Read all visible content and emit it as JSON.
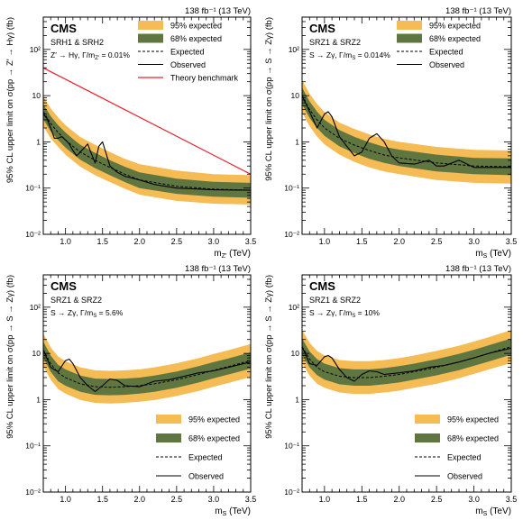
{
  "chart_data": [
    {
      "type": "line",
      "lumi_label": "138 fb⁻¹ (13 TeV)",
      "experiment": "CMS",
      "region": "SRH1 & SRH2",
      "process": "Z′ → Hγ, Γ/m",
      "process_sub": "Z′",
      "process_value": " = 0.01%",
      "xlabel": "m",
      "xlabel_sub": "Z′",
      "xlabel_unit": " (TeV)",
      "ylabel": "95% CL upper limit on σ(pp → Z′ → Hγ) (fb)",
      "xlim": [
        0.7,
        3.5
      ],
      "ylim": [
        0.01,
        500
      ],
      "yscale": "log",
      "xticks": [
        "1.0",
        "1.5",
        "2.0",
        "2.5",
        "3.0",
        "3.5"
      ],
      "yticks": [
        "10⁻²",
        "10⁻¹",
        "1",
        "10",
        "10²"
      ],
      "legend_position": "top-right",
      "legend": [
        "95% expected",
        "68% expected",
        "Expected",
        "Observed",
        "Theory benchmark"
      ],
      "x": [
        0.7,
        0.8,
        0.9,
        1.0,
        1.1,
        1.2,
        1.4,
        1.6,
        1.8,
        2.0,
        2.5,
        3.0,
        3.5
      ],
      "expected": [
        4.5,
        2.5,
        1.6,
        1.1,
        0.8,
        0.6,
        0.4,
        0.28,
        0.2,
        0.15,
        0.11,
        0.095,
        0.09
      ],
      "band68": [
        [
          3.1,
          6.5
        ],
        [
          1.7,
          3.6
        ],
        [
          1.1,
          2.3
        ],
        [
          0.75,
          1.6
        ],
        [
          0.55,
          1.15
        ],
        [
          0.41,
          0.86
        ],
        [
          0.27,
          0.58
        ],
        [
          0.19,
          0.4
        ],
        [
          0.135,
          0.29
        ],
        [
          0.1,
          0.22
        ],
        [
          0.075,
          0.16
        ],
        [
          0.065,
          0.137
        ],
        [
          0.062,
          0.13
        ]
      ],
      "band95": [
        [
          2.2,
          9.5
        ],
        [
          1.2,
          5.3
        ],
        [
          0.78,
          3.4
        ],
        [
          0.53,
          2.3
        ],
        [
          0.39,
          1.7
        ],
        [
          0.29,
          1.27
        ],
        [
          0.19,
          0.86
        ],
        [
          0.135,
          0.6
        ],
        [
          0.097,
          0.43
        ],
        [
          0.072,
          0.33
        ],
        [
          0.053,
          0.24
        ],
        [
          0.046,
          0.2
        ],
        [
          0.044,
          0.19
        ]
      ],
      "observed_x": [
        0.7,
        0.75,
        0.8,
        0.85,
        0.9,
        0.95,
        1.0,
        1.05,
        1.1,
        1.15,
        1.2,
        1.3,
        1.35,
        1.4,
        1.45,
        1.5,
        1.55,
        1.6,
        1.7,
        1.8,
        2.0,
        2.2,
        2.5,
        3.0,
        3.5
      ],
      "observed": [
        4.0,
        3.2,
        2.0,
        1.2,
        1.2,
        1.3,
        1.1,
        0.9,
        0.65,
        0.5,
        0.6,
        0.9,
        0.55,
        0.35,
        0.8,
        1.0,
        0.55,
        0.3,
        0.22,
        0.18,
        0.15,
        0.12,
        0.1,
        0.092,
        0.09
      ],
      "theory_x": [
        0.7,
        3.5
      ],
      "theory": [
        40,
        0.2
      ]
    },
    {
      "type": "line",
      "lumi_label": "138 fb⁻¹ (13 TeV)",
      "experiment": "CMS",
      "region": "SRZ1 & SRZ2",
      "process": "S → Zγ, Γ/m",
      "process_sub": "S",
      "process_value": " = 0.014%",
      "xlabel": "m",
      "xlabel_sub": "S",
      "xlabel_unit": " (TeV)",
      "ylabel": "95% CL upper limit on σ(pp → S → Zγ) (fb)",
      "xlim": [
        0.7,
        3.5
      ],
      "ylim": [
        0.01,
        500
      ],
      "yscale": "log",
      "xticks": [
        "1.0",
        "1.5",
        "2.0",
        "2.5",
        "3.0",
        "3.5"
      ],
      "yticks": [
        "10⁻²",
        "10⁻¹",
        "1",
        "10",
        "10²"
      ],
      "legend_position": "top-right",
      "legend": [
        "95% expected",
        "68% expected",
        "Expected",
        "Observed"
      ],
      "x": [
        0.7,
        0.8,
        0.9,
        1.0,
        1.2,
        1.4,
        1.6,
        1.8,
        2.0,
        2.5,
        3.0,
        3.5
      ],
      "expected": [
        10,
        5,
        3,
        2.0,
        1.2,
        0.85,
        0.65,
        0.52,
        0.45,
        0.35,
        0.3,
        0.29
      ],
      "band68": [
        [
          6.5,
          15
        ],
        [
          3.3,
          7.5
        ],
        [
          2.0,
          4.5
        ],
        [
          1.35,
          3.0
        ],
        [
          0.8,
          1.8
        ],
        [
          0.57,
          1.28
        ],
        [
          0.43,
          0.98
        ],
        [
          0.35,
          0.78
        ],
        [
          0.3,
          0.68
        ],
        [
          0.23,
          0.53
        ],
        [
          0.2,
          0.45
        ],
        [
          0.19,
          0.44
        ]
      ],
      "band95": [
        [
          4.3,
          22
        ],
        [
          2.2,
          11
        ],
        [
          1.3,
          6.6
        ],
        [
          0.88,
          4.4
        ],
        [
          0.53,
          2.6
        ],
        [
          0.37,
          1.9
        ],
        [
          0.28,
          1.45
        ],
        [
          0.23,
          1.15
        ],
        [
          0.2,
          1.0
        ],
        [
          0.15,
          0.78
        ],
        [
          0.13,
          0.67
        ],
        [
          0.125,
          0.65
        ]
      ],
      "observed_x": [
        0.7,
        0.8,
        0.9,
        1.0,
        1.05,
        1.1,
        1.2,
        1.3,
        1.4,
        1.5,
        1.6,
        1.7,
        1.8,
        1.9,
        2.0,
        2.2,
        2.4,
        2.5,
        2.6,
        2.8,
        3.0,
        3.5
      ],
      "observed": [
        10,
        4.5,
        2.0,
        4.0,
        4.5,
        3.5,
        1.3,
        0.8,
        0.5,
        0.6,
        1.2,
        1.5,
        1.0,
        0.5,
        0.35,
        0.33,
        0.4,
        0.3,
        0.3,
        0.4,
        0.28,
        0.28
      ]
    },
    {
      "type": "line",
      "lumi_label": "138 fb⁻¹ (13 TeV)",
      "experiment": "CMS",
      "region": "SRZ1 & SRZ2",
      "process": "S → Zγ, Γ/m",
      "process_sub": "S",
      "process_value": " = 5.6%",
      "xlabel": "m",
      "xlabel_sub": "S",
      "xlabel_unit": " (TeV)",
      "ylabel": "95% CL upper limit on σ(pp → S → Zγ) (fb)",
      "xlim": [
        0.7,
        3.5
      ],
      "ylim": [
        0.01,
        500
      ],
      "yscale": "log",
      "xticks": [
        "1.0",
        "1.5",
        "2.0",
        "2.5",
        "3.0",
        "3.5"
      ],
      "yticks": [
        "10⁻²",
        "10⁻¹",
        "1",
        "10",
        "10²"
      ],
      "legend_position": "bottom-right",
      "legend": [
        "95% expected",
        "68% expected",
        "Expected",
        "Observed"
      ],
      "x": [
        0.7,
        0.8,
        0.9,
        1.0,
        1.2,
        1.4,
        1.6,
        1.8,
        2.0,
        2.2,
        2.5,
        2.8,
        3.0,
        3.2,
        3.5
      ],
      "expected": [
        12,
        6,
        3.8,
        3.0,
        2.2,
        1.9,
        1.85,
        1.9,
        2.0,
        2.2,
        2.7,
        3.5,
        4.3,
        5.2,
        7.0
      ],
      "band68": [
        [
          8,
          18
        ],
        [
          4,
          9
        ],
        [
          2.5,
          5.7
        ],
        [
          2.0,
          4.5
        ],
        [
          1.47,
          3.3
        ],
        [
          1.27,
          2.85
        ],
        [
          1.24,
          2.8
        ],
        [
          1.27,
          2.85
        ],
        [
          1.35,
          3.0
        ],
        [
          1.47,
          3.3
        ],
        [
          1.8,
          4.05
        ],
        [
          2.35,
          5.3
        ],
        [
          2.9,
          6.5
        ],
        [
          3.5,
          7.8
        ],
        [
          4.7,
          10.5
        ]
      ],
      "band95": [
        [
          5.3,
          27
        ],
        [
          2.7,
          13.5
        ],
        [
          1.7,
          8.6
        ],
        [
          1.35,
          6.8
        ],
        [
          0.98,
          5.0
        ],
        [
          0.85,
          4.3
        ],
        [
          0.82,
          4.2
        ],
        [
          0.85,
          4.3
        ],
        [
          0.9,
          4.5
        ],
        [
          0.98,
          5.0
        ],
        [
          1.2,
          6.1
        ],
        [
          1.55,
          7.9
        ],
        [
          1.9,
          9.7
        ],
        [
          2.3,
          11.7
        ],
        [
          3.1,
          16
        ]
      ],
      "observed_x": [
        0.7,
        0.8,
        0.9,
        1.0,
        1.05,
        1.1,
        1.2,
        1.3,
        1.4,
        1.5,
        1.6,
        1.7,
        1.8,
        2.0,
        2.2,
        2.4,
        2.6,
        2.8,
        3.0,
        3.2,
        3.5
      ],
      "observed": [
        12,
        5,
        4.0,
        7.0,
        7.5,
        6.0,
        3.0,
        2.0,
        1.5,
        2.0,
        2.8,
        2.6,
        2.0,
        1.9,
        2.5,
        2.7,
        3.2,
        3.8,
        4.2,
        5.0,
        6.5
      ]
    },
    {
      "type": "line",
      "lumi_label": "138 fb⁻¹ (13 TeV)",
      "experiment": "CMS",
      "region": "SRZ1 & SRZ2",
      "process": "S → Zγ, Γ/m",
      "process_sub": "S",
      "process_value": " = 10%",
      "xlabel": "m",
      "xlabel_sub": "S",
      "xlabel_unit": " (TeV)",
      "ylabel": "95% CL upper limit on σ(pp → S → Zγ) (fb)",
      "xlim": [
        0.7,
        3.5
      ],
      "ylim": [
        0.01,
        500
      ],
      "yscale": "log",
      "xticks": [
        "1.0",
        "1.5",
        "2.0",
        "2.5",
        "3.0",
        "3.5"
      ],
      "yticks": [
        "10⁻²",
        "10⁻¹",
        "1",
        "10",
        "10²"
      ],
      "legend_position": "bottom-right",
      "legend": [
        "95% expected",
        "68% expected",
        "Expected",
        "Observed"
      ],
      "x": [
        0.7,
        0.8,
        0.9,
        1.0,
        1.2,
        1.4,
        1.6,
        1.8,
        2.0,
        2.2,
        2.5,
        2.8,
        3.0,
        3.2,
        3.5
      ],
      "expected": [
        14,
        7.5,
        5.0,
        4.0,
        3.2,
        3.0,
        3.0,
        3.2,
        3.5,
        4.0,
        5.0,
        6.5,
        8.0,
        10,
        14
      ],
      "band68": [
        [
          9.4,
          21
        ],
        [
          5,
          11
        ],
        [
          3.4,
          7.5
        ],
        [
          2.7,
          6
        ],
        [
          2.15,
          4.8
        ],
        [
          2.0,
          4.5
        ],
        [
          2.0,
          4.5
        ],
        [
          2.15,
          4.8
        ],
        [
          2.35,
          5.3
        ],
        [
          2.7,
          6
        ],
        [
          3.35,
          7.5
        ],
        [
          4.35,
          9.8
        ],
        [
          5.4,
          12
        ],
        [
          6.7,
          15
        ],
        [
          9.4,
          21
        ]
      ],
      "band95": [
        [
          6.2,
          32
        ],
        [
          3.3,
          17
        ],
        [
          2.2,
          11.3
        ],
        [
          1.8,
          9
        ],
        [
          1.43,
          7.2
        ],
        [
          1.33,
          6.8
        ],
        [
          1.33,
          6.8
        ],
        [
          1.43,
          7.2
        ],
        [
          1.56,
          7.9
        ],
        [
          1.8,
          9
        ],
        [
          2.2,
          11.3
        ],
        [
          2.9,
          14.7
        ],
        [
          3.6,
          18
        ],
        [
          4.5,
          22.5
        ],
        [
          6.2,
          32
        ]
      ],
      "observed_x": [
        0.7,
        0.8,
        0.9,
        1.0,
        1.05,
        1.1,
        1.2,
        1.3,
        1.4,
        1.5,
        1.6,
        1.7,
        1.8,
        2.0,
        2.2,
        2.4,
        2.6,
        2.8,
        3.0,
        3.2,
        3.5
      ],
      "observed": [
        14,
        6,
        5.5,
        8.5,
        9.0,
        8.0,
        4.5,
        3.0,
        2.5,
        3.5,
        4.2,
        4.0,
        3.5,
        3.8,
        4.2,
        5.0,
        5.5,
        6.5,
        8.0,
        10,
        13
      ]
    }
  ]
}
